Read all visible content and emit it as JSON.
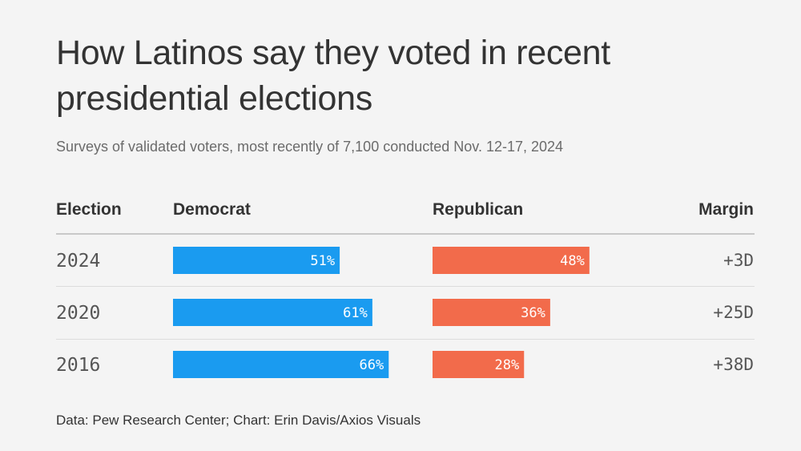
{
  "colors": {
    "democrat": "#1a9bf0",
    "republican": "#f26b4b",
    "background": "#f4f4f4"
  },
  "chart_data": {
    "type": "table",
    "title": "How Latinos say they voted in recent presidential elections",
    "subtitle": "Surveys of validated voters, most recently of 7,100 conducted Nov. 12-17, 2024",
    "columns": [
      "Election",
      "Democrat",
      "Republican",
      "Margin"
    ],
    "rows": [
      {
        "election": "2024",
        "democrat": 51,
        "democrat_label": "51%",
        "republican": 48,
        "republican_label": "48%",
        "margin": "+3D"
      },
      {
        "election": "2020",
        "democrat": 61,
        "democrat_label": "61%",
        "republican": 36,
        "republican_label": "36%",
        "margin": "+25D"
      },
      {
        "election": "2016",
        "democrat": 66,
        "democrat_label": "66%",
        "republican": 28,
        "republican_label": "28%",
        "margin": "+38D"
      }
    ],
    "value_range": [
      0,
      100
    ],
    "source": "Data: Pew Research Center; Chart: Erin Davis/Axios Visuals"
  }
}
